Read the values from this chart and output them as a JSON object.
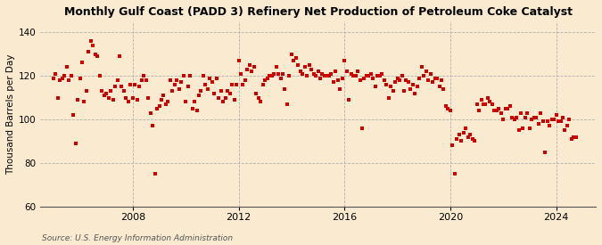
{
  "title": "Monthly Gulf Coast (PADD 3) Refinery Net Production of Petroleum Coke Catalyst",
  "ylabel": "Thousand Barrels per Day",
  "source": "Source: U.S. Energy Information Administration",
  "bg_color": "#faebd0",
  "plot_bg_color": "#faebd0",
  "marker_color": "#cc0000",
  "marker_size": 9,
  "ylim": [
    60,
    145
  ],
  "yticks": [
    60,
    80,
    100,
    120,
    140
  ],
  "x_start_year": 2004.5,
  "x_end_year": 2025.5,
  "xtick_years": [
    2008,
    2012,
    2016,
    2020,
    2024
  ],
  "data": [
    [
      2005.0,
      119
    ],
    [
      2005.083,
      121
    ],
    [
      2005.167,
      110
    ],
    [
      2005.25,
      118
    ],
    [
      2005.333,
      119
    ],
    [
      2005.417,
      120
    ],
    [
      2005.5,
      124
    ],
    [
      2005.583,
      118
    ],
    [
      2005.667,
      120
    ],
    [
      2005.75,
      102
    ],
    [
      2005.833,
      89
    ],
    [
      2005.917,
      109
    ],
    [
      2006.0,
      119
    ],
    [
      2006.083,
      126
    ],
    [
      2006.167,
      108
    ],
    [
      2006.25,
      113
    ],
    [
      2006.333,
      131
    ],
    [
      2006.417,
      136
    ],
    [
      2006.5,
      134
    ],
    [
      2006.583,
      130
    ],
    [
      2006.667,
      129
    ],
    [
      2006.75,
      120
    ],
    [
      2006.833,
      113
    ],
    [
      2006.917,
      111
    ],
    [
      2007.0,
      112
    ],
    [
      2007.083,
      110
    ],
    [
      2007.167,
      113
    ],
    [
      2007.25,
      109
    ],
    [
      2007.333,
      115
    ],
    [
      2007.417,
      118
    ],
    [
      2007.5,
      129
    ],
    [
      2007.583,
      115
    ],
    [
      2007.667,
      113
    ],
    [
      2007.75,
      110
    ],
    [
      2007.833,
      108
    ],
    [
      2007.917,
      116
    ],
    [
      2008.0,
      110
    ],
    [
      2008.083,
      116
    ],
    [
      2008.167,
      109
    ],
    [
      2008.25,
      115
    ],
    [
      2008.333,
      118
    ],
    [
      2008.417,
      120
    ],
    [
      2008.5,
      118
    ],
    [
      2008.583,
      110
    ],
    [
      2008.667,
      103
    ],
    [
      2008.75,
      97
    ],
    [
      2008.833,
      75
    ],
    [
      2008.917,
      105
    ],
    [
      2009.0,
      106
    ],
    [
      2009.083,
      109
    ],
    [
      2009.167,
      111
    ],
    [
      2009.25,
      107
    ],
    [
      2009.333,
      108
    ],
    [
      2009.417,
      118
    ],
    [
      2009.5,
      113
    ],
    [
      2009.583,
      116
    ],
    [
      2009.667,
      118
    ],
    [
      2009.75,
      114
    ],
    [
      2009.833,
      117
    ],
    [
      2009.917,
      120
    ],
    [
      2010.0,
      108
    ],
    [
      2010.083,
      115
    ],
    [
      2010.167,
      120
    ],
    [
      2010.25,
      105
    ],
    [
      2010.333,
      108
    ],
    [
      2010.417,
      104
    ],
    [
      2010.5,
      111
    ],
    [
      2010.583,
      113
    ],
    [
      2010.667,
      120
    ],
    [
      2010.75,
      116
    ],
    [
      2010.833,
      114
    ],
    [
      2010.917,
      119
    ],
    [
      2011.0,
      117
    ],
    [
      2011.083,
      112
    ],
    [
      2011.167,
      119
    ],
    [
      2011.25,
      110
    ],
    [
      2011.333,
      113
    ],
    [
      2011.417,
      108
    ],
    [
      2011.5,
      110
    ],
    [
      2011.583,
      113
    ],
    [
      2011.667,
      112
    ],
    [
      2011.75,
      116
    ],
    [
      2011.833,
      109
    ],
    [
      2011.917,
      116
    ],
    [
      2012.0,
      127
    ],
    [
      2012.083,
      121
    ],
    [
      2012.167,
      116
    ],
    [
      2012.25,
      118
    ],
    [
      2012.333,
      123
    ],
    [
      2012.417,
      125
    ],
    [
      2012.5,
      122
    ],
    [
      2012.583,
      124
    ],
    [
      2012.667,
      112
    ],
    [
      2012.75,
      110
    ],
    [
      2012.833,
      108
    ],
    [
      2012.917,
      116
    ],
    [
      2013.0,
      118
    ],
    [
      2013.083,
      119
    ],
    [
      2013.167,
      120
    ],
    [
      2013.25,
      120
    ],
    [
      2013.333,
      121
    ],
    [
      2013.417,
      124
    ],
    [
      2013.5,
      121
    ],
    [
      2013.583,
      119
    ],
    [
      2013.667,
      121
    ],
    [
      2013.75,
      114
    ],
    [
      2013.833,
      107
    ],
    [
      2013.917,
      120
    ],
    [
      2014.0,
      130
    ],
    [
      2014.083,
      127
    ],
    [
      2014.167,
      128
    ],
    [
      2014.25,
      125
    ],
    [
      2014.333,
      122
    ],
    [
      2014.417,
      121
    ],
    [
      2014.5,
      124
    ],
    [
      2014.583,
      120
    ],
    [
      2014.667,
      125
    ],
    [
      2014.75,
      123
    ],
    [
      2014.833,
      121
    ],
    [
      2014.917,
      120
    ],
    [
      2015.0,
      122
    ],
    [
      2015.083,
      119
    ],
    [
      2015.167,
      121
    ],
    [
      2015.25,
      120
    ],
    [
      2015.333,
      120
    ],
    [
      2015.417,
      120
    ],
    [
      2015.5,
      121
    ],
    [
      2015.583,
      117
    ],
    [
      2015.667,
      122
    ],
    [
      2015.75,
      118
    ],
    [
      2015.833,
      114
    ],
    [
      2015.917,
      119
    ],
    [
      2016.0,
      127
    ],
    [
      2016.083,
      122
    ],
    [
      2016.167,
      109
    ],
    [
      2016.25,
      121
    ],
    [
      2016.333,
      120
    ],
    [
      2016.417,
      120
    ],
    [
      2016.5,
      122
    ],
    [
      2016.583,
      118
    ],
    [
      2016.667,
      96
    ],
    [
      2016.75,
      119
    ],
    [
      2016.833,
      120
    ],
    [
      2016.917,
      120
    ],
    [
      2017.0,
      121
    ],
    [
      2017.083,
      119
    ],
    [
      2017.167,
      115
    ],
    [
      2017.25,
      120
    ],
    [
      2017.333,
      120
    ],
    [
      2017.417,
      121
    ],
    [
      2017.5,
      118
    ],
    [
      2017.583,
      116
    ],
    [
      2017.667,
      110
    ],
    [
      2017.75,
      115
    ],
    [
      2017.833,
      113
    ],
    [
      2017.917,
      117
    ],
    [
      2018.0,
      119
    ],
    [
      2018.083,
      118
    ],
    [
      2018.167,
      120
    ],
    [
      2018.25,
      113
    ],
    [
      2018.333,
      118
    ],
    [
      2018.417,
      117
    ],
    [
      2018.5,
      114
    ],
    [
      2018.583,
      116
    ],
    [
      2018.667,
      112
    ],
    [
      2018.75,
      115
    ],
    [
      2018.833,
      119
    ],
    [
      2018.917,
      124
    ],
    [
      2019.0,
      120
    ],
    [
      2019.083,
      122
    ],
    [
      2019.167,
      118
    ],
    [
      2019.25,
      121
    ],
    [
      2019.333,
      117
    ],
    [
      2019.417,
      119
    ],
    [
      2019.5,
      119
    ],
    [
      2019.583,
      115
    ],
    [
      2019.667,
      118
    ],
    [
      2019.75,
      114
    ],
    [
      2019.833,
      106
    ],
    [
      2019.917,
      105
    ],
    [
      2020.0,
      104
    ],
    [
      2020.083,
      88
    ],
    [
      2020.167,
      75
    ],
    [
      2020.25,
      91
    ],
    [
      2020.333,
      93
    ],
    [
      2020.417,
      90
    ],
    [
      2020.5,
      94
    ],
    [
      2020.583,
      96
    ],
    [
      2020.667,
      92
    ],
    [
      2020.75,
      93
    ],
    [
      2020.833,
      91
    ],
    [
      2020.917,
      90
    ],
    [
      2021.0,
      107
    ],
    [
      2021.083,
      104
    ],
    [
      2021.167,
      109
    ],
    [
      2021.25,
      107
    ],
    [
      2021.333,
      107
    ],
    [
      2021.417,
      110
    ],
    [
      2021.5,
      108
    ],
    [
      2021.583,
      107
    ],
    [
      2021.667,
      104
    ],
    [
      2021.75,
      104
    ],
    [
      2021.833,
      105
    ],
    [
      2021.917,
      103
    ],
    [
      2022.0,
      100
    ],
    [
      2022.083,
      105
    ],
    [
      2022.167,
      105
    ],
    [
      2022.25,
      106
    ],
    [
      2022.333,
      101
    ],
    [
      2022.417,
      100
    ],
    [
      2022.5,
      101
    ],
    [
      2022.583,
      95
    ],
    [
      2022.667,
      103
    ],
    [
      2022.75,
      96
    ],
    [
      2022.833,
      101
    ],
    [
      2022.917,
      103
    ],
    [
      2023.0,
      96
    ],
    [
      2023.083,
      100
    ],
    [
      2023.167,
      101
    ],
    [
      2023.25,
      101
    ],
    [
      2023.333,
      98
    ],
    [
      2023.417,
      103
    ],
    [
      2023.5,
      99
    ],
    [
      2023.583,
      85
    ],
    [
      2023.667,
      99
    ],
    [
      2023.75,
      97
    ],
    [
      2023.833,
      100
    ],
    [
      2023.917,
      100
    ],
    [
      2024.0,
      102
    ],
    [
      2024.083,
      99
    ],
    [
      2024.167,
      99
    ],
    [
      2024.25,
      101
    ],
    [
      2024.333,
      95
    ],
    [
      2024.417,
      97
    ],
    [
      2024.5,
      100
    ],
    [
      2024.583,
      91
    ],
    [
      2024.667,
      92
    ],
    [
      2024.75,
      92
    ]
  ]
}
